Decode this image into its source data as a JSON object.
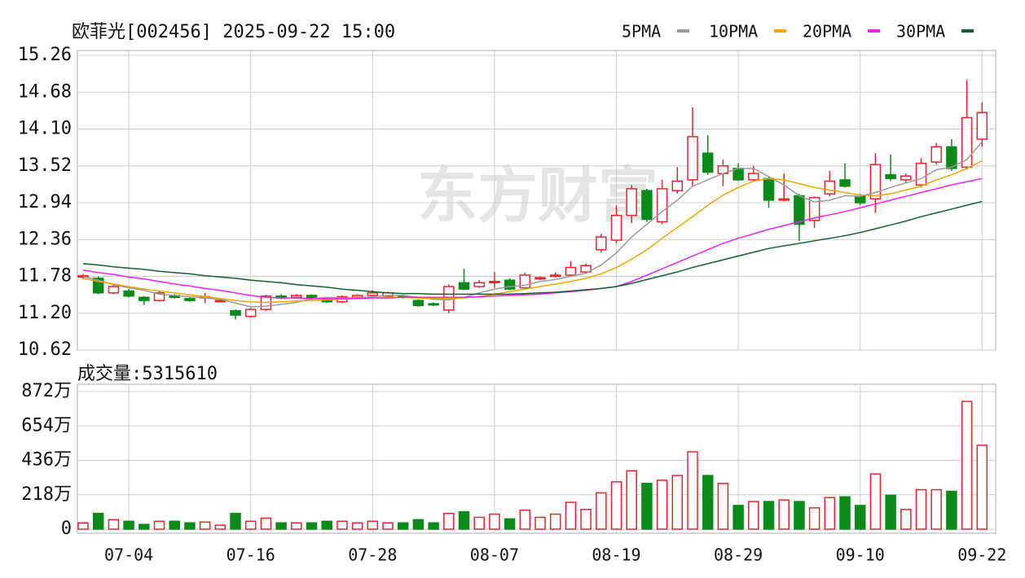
{
  "chart_data": [
    {
      "type": "candlestick",
      "title": "欧菲光[002456] 2025-09-22 15:00",
      "watermark": "东方财富",
      "up_color": "#e8232b",
      "down_color": "#0b8a1a",
      "grid": true,
      "ylim": [
        10.62,
        15.26
      ],
      "yticks": [
        10.62,
        {
          "value": 11.2,
          "label": "11.20"
        },
        11.78,
        12.36,
        12.94,
        13.52,
        {
          "value": 14.1,
          "label": "14.10"
        },
        14.68,
        15.26
      ],
      "open": [
        11.77,
        11.75,
        11.52,
        11.55,
        11.45,
        11.4,
        11.48,
        11.43,
        11.44,
        11.4,
        11.24,
        11.15,
        11.26,
        11.47,
        11.45,
        11.48,
        11.42,
        11.38,
        11.45,
        11.48,
        11.47,
        11.47,
        11.4,
        11.35,
        11.25,
        11.68,
        11.62,
        11.68,
        11.72,
        11.6,
        11.74,
        11.78,
        11.8,
        11.85,
        12.2,
        12.35,
        12.74,
        13.13,
        12.64,
        13.13,
        13.3,
        13.72,
        13.4,
        13.48,
        13.3,
        13.32,
        12.98,
        13.05,
        12.66,
        13.08,
        13.3,
        13.04,
        13.0,
        13.38,
        13.3,
        13.22,
        13.58,
        13.82,
        13.5,
        13.94
      ],
      "high": [
        11.82,
        11.78,
        11.65,
        11.58,
        11.47,
        11.55,
        11.5,
        11.45,
        11.52,
        11.43,
        11.26,
        11.28,
        11.49,
        11.5,
        11.5,
        11.5,
        11.44,
        11.48,
        11.5,
        11.56,
        11.54,
        11.49,
        11.42,
        11.37,
        11.65,
        11.9,
        11.72,
        11.85,
        11.75,
        11.84,
        11.78,
        11.84,
        12.02,
        11.98,
        12.45,
        12.9,
        13.22,
        13.16,
        13.3,
        13.5,
        14.44,
        14.0,
        13.62,
        13.56,
        13.52,
        13.34,
        13.4,
        13.08,
        13.04,
        13.44,
        13.56,
        13.08,
        13.72,
        13.7,
        13.4,
        13.64,
        13.88,
        13.94,
        14.87,
        14.52
      ],
      "low": [
        11.74,
        11.5,
        11.5,
        11.45,
        11.33,
        11.38,
        11.43,
        11.38,
        11.36,
        11.38,
        11.1,
        11.13,
        11.24,
        11.42,
        11.43,
        11.41,
        11.36,
        11.36,
        11.43,
        11.46,
        11.45,
        11.43,
        11.3,
        11.31,
        11.2,
        11.56,
        11.6,
        11.6,
        11.56,
        11.58,
        11.72,
        11.76,
        11.78,
        11.83,
        12.16,
        12.3,
        12.62,
        12.64,
        12.6,
        13.08,
        13.2,
        13.38,
        13.2,
        13.28,
        13.28,
        12.86,
        12.96,
        12.34,
        12.54,
        13.04,
        13.18,
        12.9,
        12.78,
        13.28,
        13.26,
        13.18,
        13.54,
        13.44,
        13.46,
        13.82
      ],
      "close": [
        11.79,
        11.52,
        11.62,
        11.47,
        11.4,
        11.52,
        11.45,
        11.4,
        11.46,
        11.4,
        11.17,
        11.26,
        11.47,
        11.44,
        11.48,
        11.43,
        11.38,
        11.46,
        11.48,
        11.52,
        11.52,
        11.45,
        11.32,
        11.33,
        11.62,
        11.58,
        11.68,
        11.7,
        11.58,
        11.8,
        11.76,
        11.8,
        11.92,
        11.95,
        12.4,
        12.74,
        13.16,
        12.68,
        13.16,
        13.28,
        13.98,
        13.42,
        13.52,
        13.3,
        13.4,
        12.98,
        13.0,
        12.6,
        13.02,
        13.28,
        13.2,
        12.94,
        13.54,
        13.32,
        13.36,
        13.56,
        13.82,
        13.48,
        14.28,
        14.36
      ],
      "series": [
        {
          "name": "5PMA",
          "color": "#9a9a9a",
          "values": [
            11.78,
            11.72,
            11.65,
            11.6,
            11.56,
            11.5,
            11.48,
            11.46,
            11.44,
            11.42,
            11.36,
            11.3,
            11.31,
            11.34,
            11.37,
            11.43,
            11.45,
            11.44,
            11.44,
            11.46,
            11.48,
            11.48,
            11.45,
            11.42,
            11.41,
            11.45,
            11.52,
            11.58,
            11.62,
            11.64,
            11.7,
            11.73,
            11.78,
            11.83,
            11.96,
            12.15,
            12.4,
            12.6,
            12.8,
            12.98,
            13.2,
            13.3,
            13.4,
            13.48,
            13.48,
            13.35,
            13.22,
            13.05,
            12.95,
            12.98,
            13.05,
            13.04,
            13.1,
            13.18,
            13.25,
            13.32,
            13.46,
            13.5,
            13.62,
            13.9
          ]
        },
        {
          "name": "10PMA",
          "color": "#f0a500",
          "values": [
            11.75,
            11.7,
            11.66,
            11.62,
            11.58,
            11.55,
            11.52,
            11.49,
            11.46,
            11.43,
            11.4,
            11.38,
            11.37,
            11.38,
            11.39,
            11.4,
            11.41,
            11.42,
            11.43,
            11.44,
            11.45,
            11.45,
            11.44,
            11.43,
            11.43,
            11.44,
            11.46,
            11.5,
            11.54,
            11.58,
            11.62,
            11.66,
            11.7,
            11.75,
            11.82,
            11.92,
            12.05,
            12.2,
            12.38,
            12.55,
            12.72,
            12.9,
            13.06,
            13.18,
            13.28,
            13.32,
            13.3,
            13.24,
            13.18,
            13.14,
            13.1,
            13.06,
            13.05,
            13.08,
            13.14,
            13.2,
            13.3,
            13.38,
            13.48,
            13.6
          ]
        },
        {
          "name": "20PMA",
          "color": "#ee22ee",
          "values": [
            11.88,
            11.84,
            11.81,
            11.77,
            11.74,
            11.7,
            11.66,
            11.63,
            11.59,
            11.56,
            11.52,
            11.48,
            11.45,
            11.44,
            11.44,
            11.43,
            11.43,
            11.43,
            11.43,
            11.44,
            11.44,
            11.45,
            11.45,
            11.45,
            11.45,
            11.45,
            11.46,
            11.47,
            11.48,
            11.49,
            11.5,
            11.52,
            11.54,
            11.56,
            11.59,
            11.62,
            11.7,
            11.8,
            11.9,
            12.0,
            12.1,
            12.2,
            12.3,
            12.38,
            12.45,
            12.52,
            12.58,
            12.64,
            12.7,
            12.75,
            12.8,
            12.86,
            12.92,
            12.98,
            13.04,
            13.1,
            13.16,
            13.22,
            13.27,
            13.32
          ]
        },
        {
          "name": "30PMA",
          "color": "#106030",
          "values": [
            11.98,
            11.96,
            11.93,
            11.91,
            11.89,
            11.86,
            11.84,
            11.82,
            11.79,
            11.77,
            11.75,
            11.72,
            11.7,
            11.68,
            11.65,
            11.63,
            11.61,
            11.58,
            11.56,
            11.54,
            11.52,
            11.51,
            11.51,
            11.5,
            11.5,
            11.5,
            11.5,
            11.5,
            11.5,
            11.51,
            11.52,
            11.53,
            11.55,
            11.57,
            11.59,
            11.62,
            11.67,
            11.73,
            11.79,
            11.85,
            11.92,
            11.98,
            12.04,
            12.1,
            12.16,
            12.22,
            12.26,
            12.3,
            12.34,
            12.38,
            12.42,
            12.47,
            12.53,
            12.59,
            12.65,
            12.72,
            12.78,
            12.84,
            12.9,
            12.96
          ]
        }
      ]
    },
    {
      "type": "bar",
      "title": "成交量:5315610",
      "categories": [
        null,
        null,
        null,
        "07-04",
        null,
        null,
        null,
        null,
        null,
        null,
        null,
        "07-16",
        null,
        null,
        null,
        null,
        null,
        null,
        null,
        "07-28",
        null,
        null,
        null,
        null,
        null,
        null,
        null,
        "08-07",
        null,
        null,
        null,
        null,
        null,
        null,
        null,
        "08-19",
        null,
        null,
        null,
        null,
        null,
        null,
        null,
        "08-29",
        null,
        null,
        null,
        null,
        null,
        null,
        null,
        "09-10",
        null,
        null,
        null,
        null,
        null,
        null,
        null,
        "09-22"
      ],
      "values": [
        40,
        100,
        60,
        50,
        30,
        50,
        50,
        40,
        45,
        25,
        100,
        50,
        70,
        40,
        40,
        40,
        50,
        50,
        40,
        50,
        40,
        40,
        60,
        40,
        100,
        110,
        75,
        95,
        65,
        120,
        75,
        95,
        170,
        125,
        230,
        300,
        370,
        290,
        310,
        340,
        490,
        340,
        290,
        150,
        175,
        175,
        185,
        175,
        135,
        200,
        205,
        150,
        350,
        215,
        125,
        250,
        250,
        240,
        810,
        531.561
      ],
      "ylim": [
        0,
        872
      ],
      "yticks": [
        0,
        {
          "value": 218,
          "label": "218万"
        },
        {
          "value": 436,
          "label": "436万"
        },
        {
          "value": 654,
          "label": "654万"
        },
        {
          "value": 872,
          "label": "872万"
        }
      ]
    }
  ]
}
